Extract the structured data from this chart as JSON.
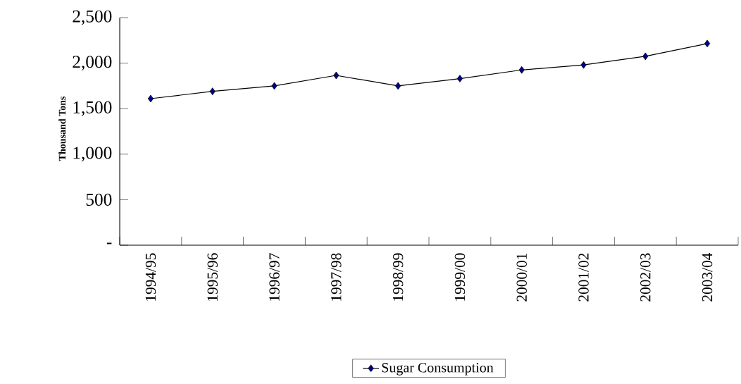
{
  "chart_data": {
    "type": "line",
    "ylabel": "Thousand Tons",
    "categories": [
      "1994/95",
      "1995/96",
      "1996/97",
      "1997/98",
      "1998/99",
      "1999/00",
      "2000/01",
      "2001/02",
      "2002/03",
      "2003/04"
    ],
    "series": [
      {
        "name": "Sugar Consumption",
        "color": "#000080",
        "values": [
          1610,
          1690,
          1750,
          1865,
          1750,
          1830,
          1925,
          1980,
          2075,
          2215
        ]
      }
    ],
    "ylim": [
      0,
      2500
    ],
    "yticks": [
      {
        "value": 0,
        "label": "-"
      },
      500,
      {
        "value": 1000,
        "label": "1,000"
      },
      {
        "value": 1500,
        "label": "1,500"
      },
      {
        "value": 2000,
        "label": "2,000"
      },
      {
        "value": 2500,
        "label": "2,500"
      }
    ],
    "marker": "diamond",
    "line_style": "solid",
    "grid": false,
    "legend": "bottom"
  }
}
